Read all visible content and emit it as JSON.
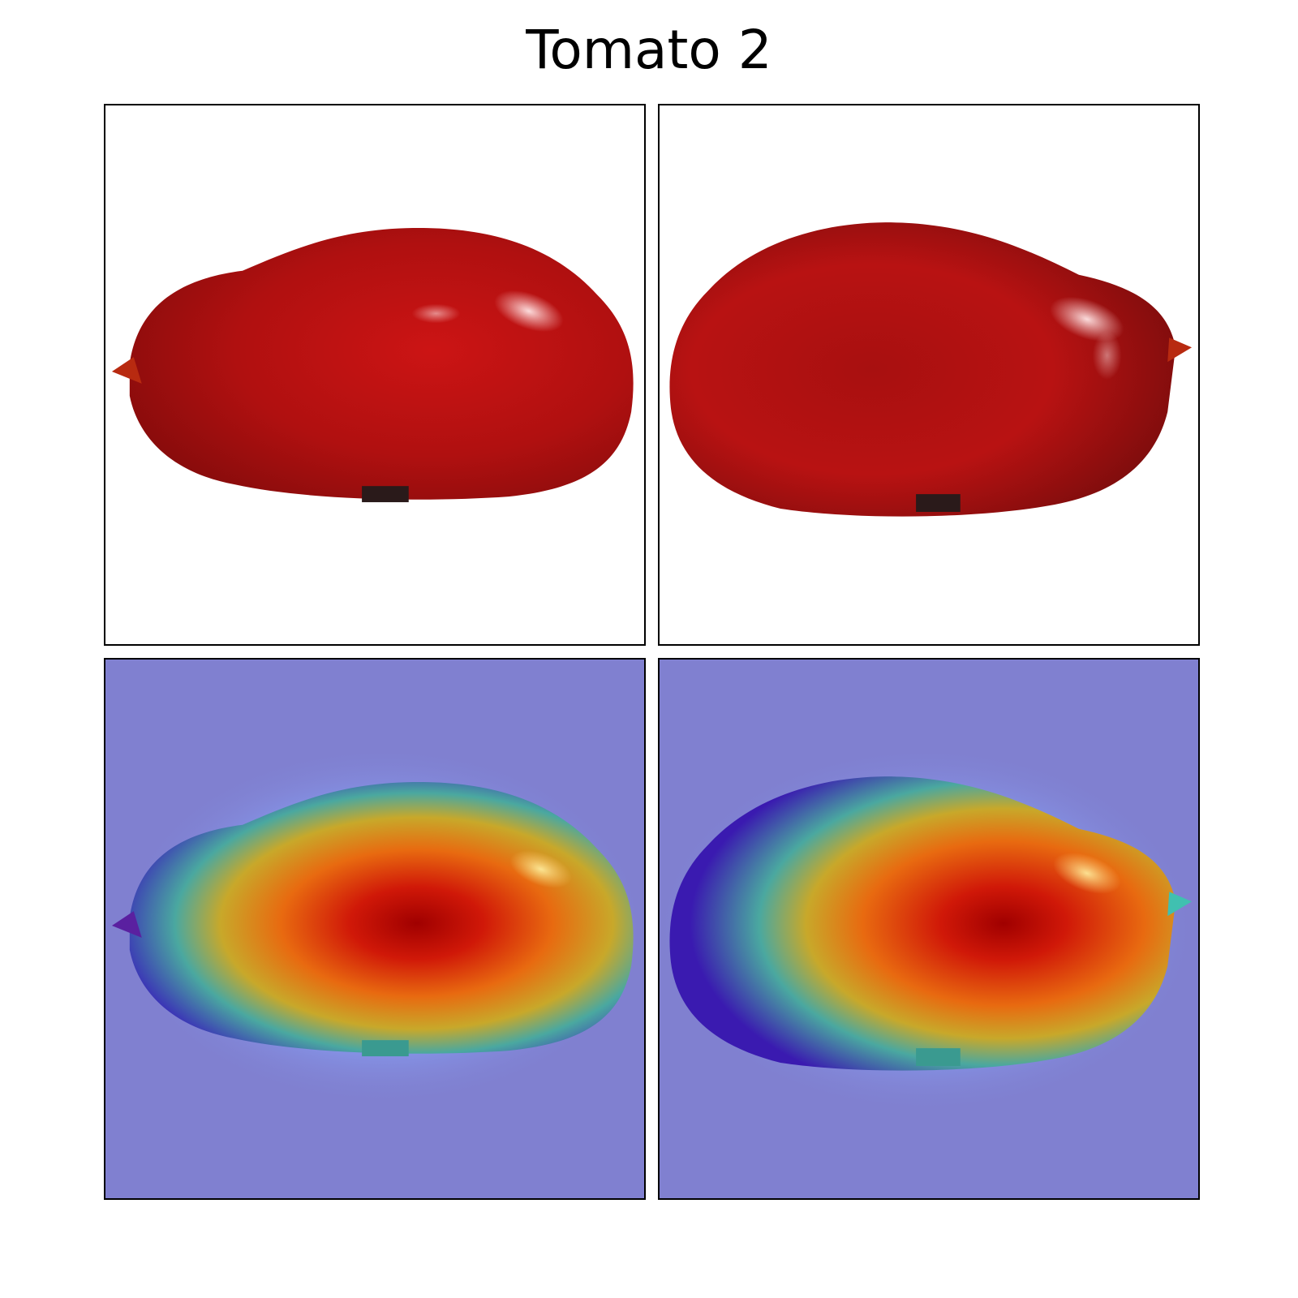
{
  "figure": {
    "title": "Tomato 2"
  },
  "panels": [
    {
      "row": 1,
      "view": "left",
      "content": "tomato-photo"
    },
    {
      "row": 1,
      "view": "right",
      "content": "tomato-photo"
    },
    {
      "row": 2,
      "view": "left",
      "content": "heatmap-overlay"
    },
    {
      "row": 2,
      "view": "right",
      "content": "heatmap-overlay"
    }
  ],
  "colors": {
    "tomato_red": "#b81414",
    "tomato_dark": "#7a0c0c",
    "highlight": "#f4c8c8",
    "heat_background": "#8080d0",
    "heat_halo": "#8aa8ff",
    "heat_cyan": "#7fe8e0",
    "heat_yellow": "#d8b020",
    "heat_orange": "#e86010",
    "heat_core": "#b00000"
  }
}
